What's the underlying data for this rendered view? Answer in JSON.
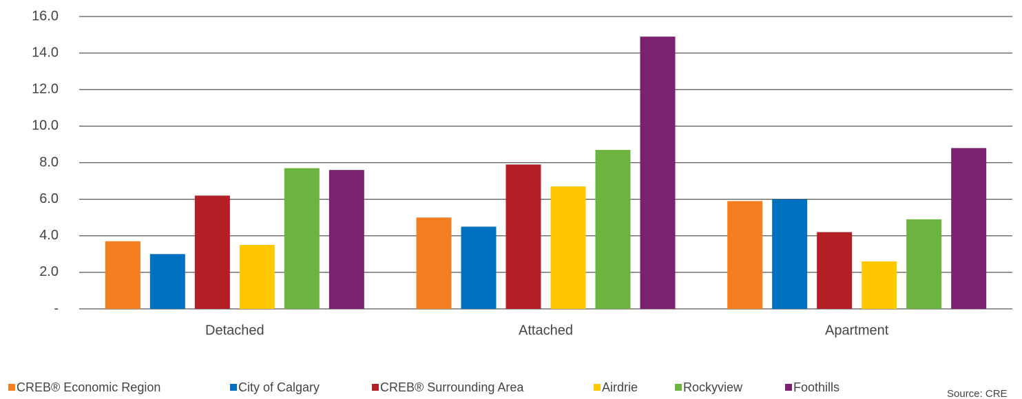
{
  "chart_data": {
    "type": "bar",
    "categories": [
      "Detached",
      "Attached",
      "Apartment"
    ],
    "series": [
      {
        "name": "CREB® Economic Region",
        "color": "#f47f20",
        "values": [
          3.7,
          5.0,
          5.9
        ]
      },
      {
        "name": "City of Calgary",
        "color": "#0070c0",
        "values": [
          3.0,
          4.5,
          6.0
        ]
      },
      {
        "name": "CREB® Surrounding Area",
        "color": "#b22025",
        "values": [
          6.2,
          7.9,
          4.2
        ]
      },
      {
        "name": "Airdrie",
        "color": "#ffc800",
        "values": [
          3.5,
          6.7,
          2.6
        ]
      },
      {
        "name": "Rockyview",
        "color": "#6db33f",
        "values": [
          7.7,
          8.7,
          4.9
        ]
      },
      {
        "name": "Foothills",
        "color": "#7b2170",
        "values": [
          7.6,
          14.9,
          8.8
        ]
      }
    ],
    "ylim": [
      0,
      16
    ],
    "yticks": [
      {
        "value": 0,
        "label": "-"
      },
      {
        "value": 2,
        "label": "2.0"
      },
      {
        "value": 4,
        "label": "4.0"
      },
      {
        "value": 6,
        "label": "6.0"
      },
      {
        "value": 8,
        "label": "8.0"
      },
      {
        "value": 10,
        "label": "10.0"
      },
      {
        "value": 12,
        "label": "12.0"
      },
      {
        "value": 14,
        "label": "14.0"
      },
      {
        "value": 16,
        "label": "16.0"
      }
    ],
    "grid": true,
    "legend": "bottom",
    "source": "Source: CRE"
  }
}
